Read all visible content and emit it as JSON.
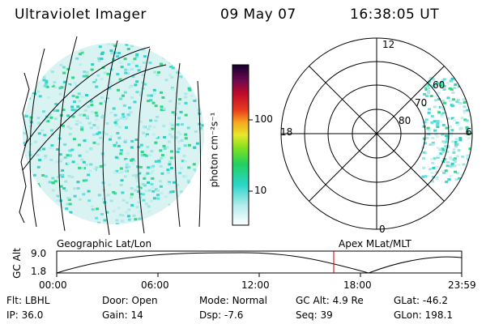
{
  "header": {
    "instrument": "Ultraviolet Imager",
    "date": "09 May 07",
    "time": "16:38:05 UT"
  },
  "colorbar": {
    "unit_label": "photon cm⁻²s⁻¹",
    "ticks": [
      "100",
      "10"
    ]
  },
  "polar_plot": {
    "mlt_labels": {
      "top": "12",
      "left": "18",
      "right": "6",
      "bottom": "0"
    },
    "lat_labels": [
      "60",
      "70",
      "80"
    ]
  },
  "timeline": {
    "left_label": "Geographic Lat/Lon",
    "right_label": "Apex MLat/MLT",
    "axis_title": "GC Alt",
    "y_ticks": [
      "9.0",
      "1.8"
    ],
    "x_ticks": [
      "00:00",
      "06:00",
      "12:00",
      "18:00",
      "23:59"
    ],
    "current_marker_color": "#cc0000"
  },
  "info": {
    "row1": [
      {
        "label": "Flt:",
        "value": "LBHL"
      },
      {
        "label": "Door:",
        "value": "Open"
      },
      {
        "label": "Mode:",
        "value": "Normal"
      },
      {
        "label": "GC Alt:",
        "value": "4.9 Re"
      },
      {
        "label": "GLat:",
        "value": "-46.2"
      }
    ],
    "row2": [
      {
        "label": "IP:",
        "value": "36.0"
      },
      {
        "label": "Gain:",
        "value": "14"
      },
      {
        "label": "Dsp:",
        "value": "-7.6"
      },
      {
        "label": "Seq:",
        "value": "39"
      },
      {
        "label": "GLon:",
        "value": "198.1"
      }
    ]
  }
}
